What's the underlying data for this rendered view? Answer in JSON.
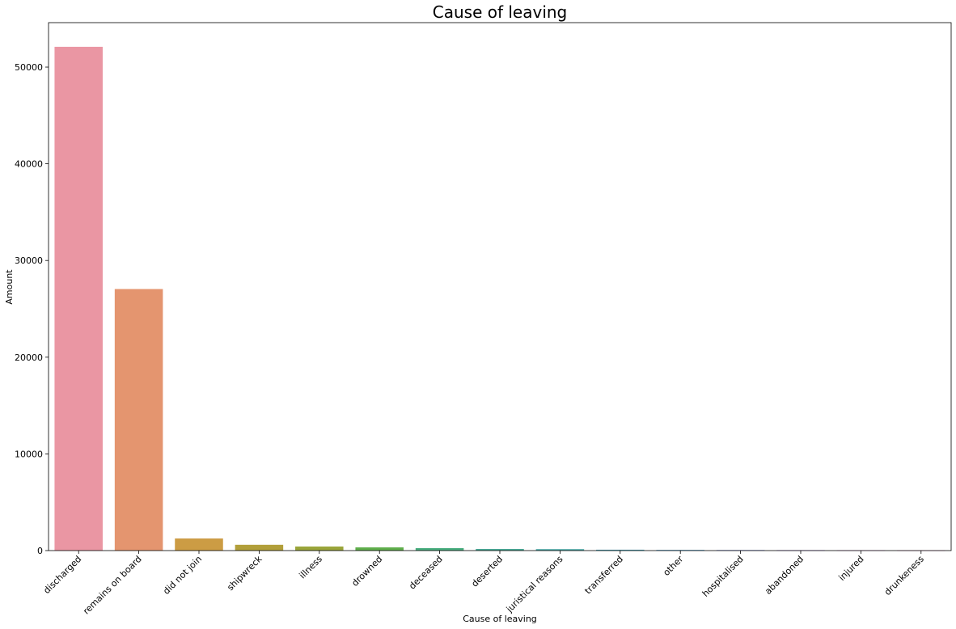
{
  "chart_data": {
    "type": "bar",
    "title": "Cause of leaving",
    "xlabel": "Cause of leaving",
    "ylabel": "Amount",
    "categories": [
      "discharged",
      "remains on board",
      "did not join",
      "shipwreck",
      "illness",
      "drowned",
      "deceased",
      "deserted",
      "juristical reasons",
      "transferred",
      "other",
      "hospitalised",
      "abandoned",
      "injured",
      "drunkeness"
    ],
    "values": [
      52100,
      27050,
      1250,
      600,
      420,
      330,
      250,
      170,
      150,
      90,
      70,
      60,
      50,
      40,
      30
    ],
    "colors": [
      "#ea96a3",
      "#e4956f",
      "#cc9c44",
      "#b29f3a",
      "#9aa53a",
      "#5fae4b",
      "#48ad7e",
      "#4aab98",
      "#4baaa9",
      "#4eabbd",
      "#5aa8d6",
      "#8f9fe6",
      "#b89be8",
      "#dd89e2",
      "#e88fc7"
    ],
    "ylim": [
      0,
      54600
    ],
    "yticks": [
      0,
      10000,
      20000,
      30000,
      40000,
      50000
    ],
    "grid": false,
    "legend": "none"
  }
}
